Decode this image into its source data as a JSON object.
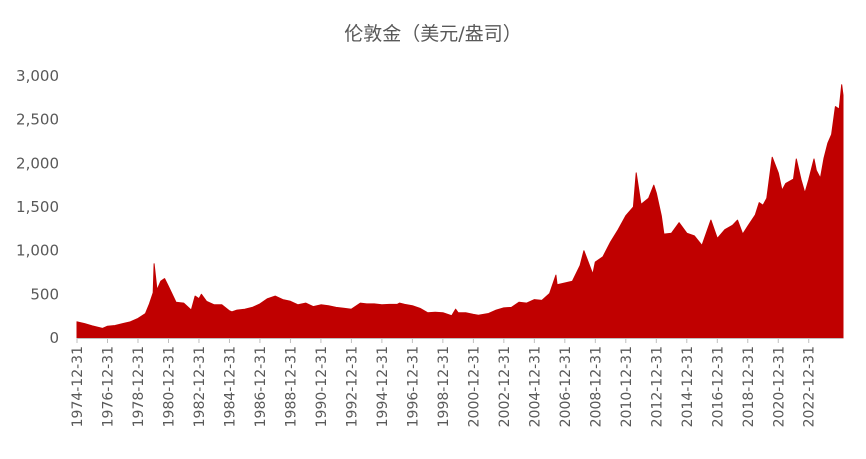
{
  "chart_data": {
    "type": "area",
    "title": "伦敦金（美元/盎司）",
    "xlabel": "",
    "ylabel": "",
    "ylim": [
      0,
      3000
    ],
    "yticks": [
      "0",
      "500",
      "1,000",
      "1,500",
      "2,000",
      "2,500",
      "3,000"
    ],
    "xticks": [
      "1974-12-31",
      "1976-12-31",
      "1978-12-31",
      "1980-12-31",
      "1982-12-31",
      "1984-12-31",
      "1986-12-31",
      "1988-12-31",
      "1990-12-31",
      "1992-12-31",
      "1994-12-31",
      "1996-12-31",
      "1998-12-31",
      "2000-12-31",
      "2002-12-31",
      "2004-12-31",
      "2006-12-31",
      "2008-12-31",
      "2010-12-31",
      "2012-12-31",
      "2014-12-31",
      "2016-12-31",
      "2018-12-31",
      "2020-12-31",
      "2022-12-31"
    ],
    "xrange": [
      "1974-12-31",
      "2025-03-31"
    ],
    "grid": false,
    "legend": "none",
    "color": "#c00000",
    "series": [
      {
        "x": [
          "1974-12-31",
          "1975-06-30",
          "1975-12-31",
          "1976-08-31",
          "1976-12-31",
          "1977-06-30",
          "1977-12-31",
          "1978-06-30",
          "1978-12-31",
          "1979-06-30",
          "1979-09-30",
          "1979-12-31",
          "1980-01-21",
          "1980-03-31",
          "1980-06-30",
          "1980-09-30",
          "1980-12-31",
          "1981-06-30",
          "1981-12-31",
          "1982-06-30",
          "1982-09-30",
          "1982-12-31",
          "1983-02-28",
          "1983-06-30",
          "1983-12-31",
          "1984-06-30",
          "1984-12-31",
          "1985-02-28",
          "1985-06-30",
          "1985-12-31",
          "1986-06-30",
          "1986-12-31",
          "1987-06-30",
          "1987-12-31",
          "1988-06-30",
          "1988-12-31",
          "1989-06-30",
          "1989-12-31",
          "1990-06-30",
          "1990-12-31",
          "1991-06-30",
          "1991-12-31",
          "1992-06-30",
          "1992-12-31",
          "1993-07-31",
          "1993-12-31",
          "1994-06-30",
          "1994-12-31",
          "1995-06-30",
          "1995-12-31",
          "1996-02-28",
          "1996-06-30",
          "1996-12-31",
          "1997-06-30",
          "1997-12-31",
          "1998-06-30",
          "1998-12-31",
          "1999-07-31",
          "1999-10-31",
          "1999-12-31",
          "2000-06-30",
          "2000-12-31",
          "2001-04-30",
          "2001-12-31",
          "2002-06-30",
          "2002-12-31",
          "2003-06-30",
          "2003-12-31",
          "2004-06-30",
          "2004-12-31",
          "2005-06-30",
          "2005-12-31",
          "2006-05-31",
          "2006-06-30",
          "2006-12-31",
          "2007-06-30",
          "2007-12-31",
          "2008-03-31",
          "2008-10-31",
          "2008-12-31",
          "2009-06-30",
          "2009-12-31",
          "2010-06-30",
          "2010-12-31",
          "2011-06-30",
          "2011-09-05",
          "2011-12-31",
          "2012-06-30",
          "2012-10-31",
          "2012-12-31",
          "2013-04-30",
          "2013-06-30",
          "2013-12-31",
          "2014-06-30",
          "2014-12-31",
          "2015-06-30",
          "2015-12-31",
          "2016-07-31",
          "2016-12-31",
          "2017-06-30",
          "2017-12-31",
          "2018-04-30",
          "2018-08-31",
          "2018-12-31",
          "2019-06-30",
          "2019-09-30",
          "2019-12-31",
          "2020-03-31",
          "2020-08-07",
          "2020-12-31",
          "2021-03-31",
          "2021-06-30",
          "2021-12-31",
          "2022-03-08",
          "2022-06-30",
          "2022-09-30",
          "2022-12-31",
          "2023-05-05",
          "2023-06-30",
          "2023-10-06",
          "2023-12-31",
          "2024-03-31",
          "2024-06-30",
          "2024-09-30",
          "2024-12-31",
          "2025-02-28",
          "2025-03-31"
        ],
        "values": [
          186,
          165,
          140,
          110,
          135,
          143,
          165,
          185,
          225,
          280,
          390,
          520,
          850,
          550,
          650,
          680,
          590,
          410,
          400,
          320,
          480,
          450,
          500,
          420,
          380,
          380,
          310,
          300,
          320,
          330,
          350,
          390,
          450,
          480,
          440,
          420,
          380,
          400,
          360,
          380,
          370,
          350,
          340,
          330,
          400,
          390,
          390,
          380,
          385,
          385,
          400,
          385,
          370,
          340,
          290,
          295,
          290,
          255,
          330,
          290,
          290,
          270,
          260,
          280,
          320,
          345,
          350,
          410,
          400,
          440,
          430,
          510,
          720,
          610,
          630,
          650,
          830,
          1000,
          730,
          870,
          930,
          1100,
          1240,
          1400,
          1500,
          1890,
          1530,
          1600,
          1750,
          1660,
          1400,
          1190,
          1200,
          1320,
          1200,
          1170,
          1060,
          1350,
          1140,
          1240,
          1290,
          1350,
          1190,
          1280,
          1410,
          1550,
          1520,
          1600,
          2070,
          1890,
          1690,
          1770,
          1820,
          2050,
          1810,
          1660,
          1810,
          2050,
          1920,
          1830,
          2060,
          2230,
          2330,
          2650,
          2620,
          2900,
          2780
        ]
      }
    ]
  }
}
